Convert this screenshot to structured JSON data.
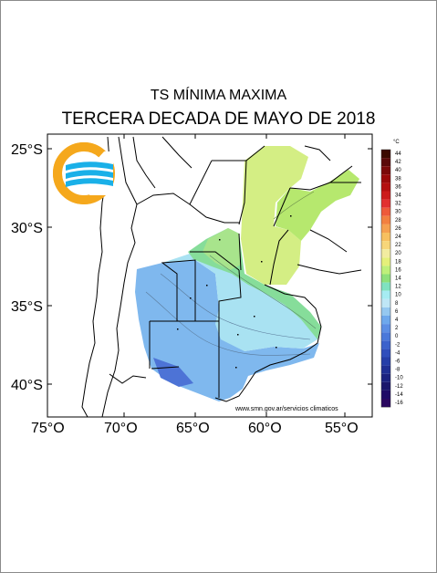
{
  "title": "TS MÍNIMA MAXIMA",
  "subtitle": "TERCERA DECADA DE MAYO DE 2018",
  "credit": "www.smn.gov.ar/servicios climaticos",
  "unit": "°C",
  "lat_labels": [
    "25°S",
    "30°S",
    "35°S",
    "40°S"
  ],
  "lon_labels": [
    "75°O",
    "70°O",
    "65°O",
    "60°O",
    "55°O"
  ],
  "colorbar": {
    "labels": [
      "44",
      "42",
      "40",
      "38",
      "36",
      "34",
      "32",
      "30",
      "28",
      "26",
      "24",
      "22",
      "20",
      "18",
      "16",
      "14",
      "12",
      "10",
      "8",
      "6",
      "4",
      "2",
      "0",
      "-2",
      "-4",
      "-6",
      "-8",
      "-10",
      "-12",
      "-14",
      "-16"
    ],
    "colors": [
      "#3b0a00",
      "#5a0a0a",
      "#7a0a0a",
      "#9a0a0a",
      "#b40f0f",
      "#cc1a1a",
      "#e23030",
      "#ee5a3a",
      "#f28040",
      "#f5a050",
      "#f7c060",
      "#f7d67a",
      "#f2eca0",
      "#e5f07a",
      "#bff07a",
      "#8ee07a",
      "#7fe2c0",
      "#a6ecf2",
      "#bfe6f6",
      "#95c8f0",
      "#6ea8ec",
      "#5c8ee4",
      "#4a78da",
      "#3c62cc",
      "#2f4ebc",
      "#253ea8",
      "#1f2f94",
      "#1b2280",
      "#1a166c",
      "#1f0a66",
      "#2a0860"
    ]
  },
  "logo_colors": {
    "orange": "#f5a81c",
    "blue": "#1ab0e8"
  }
}
